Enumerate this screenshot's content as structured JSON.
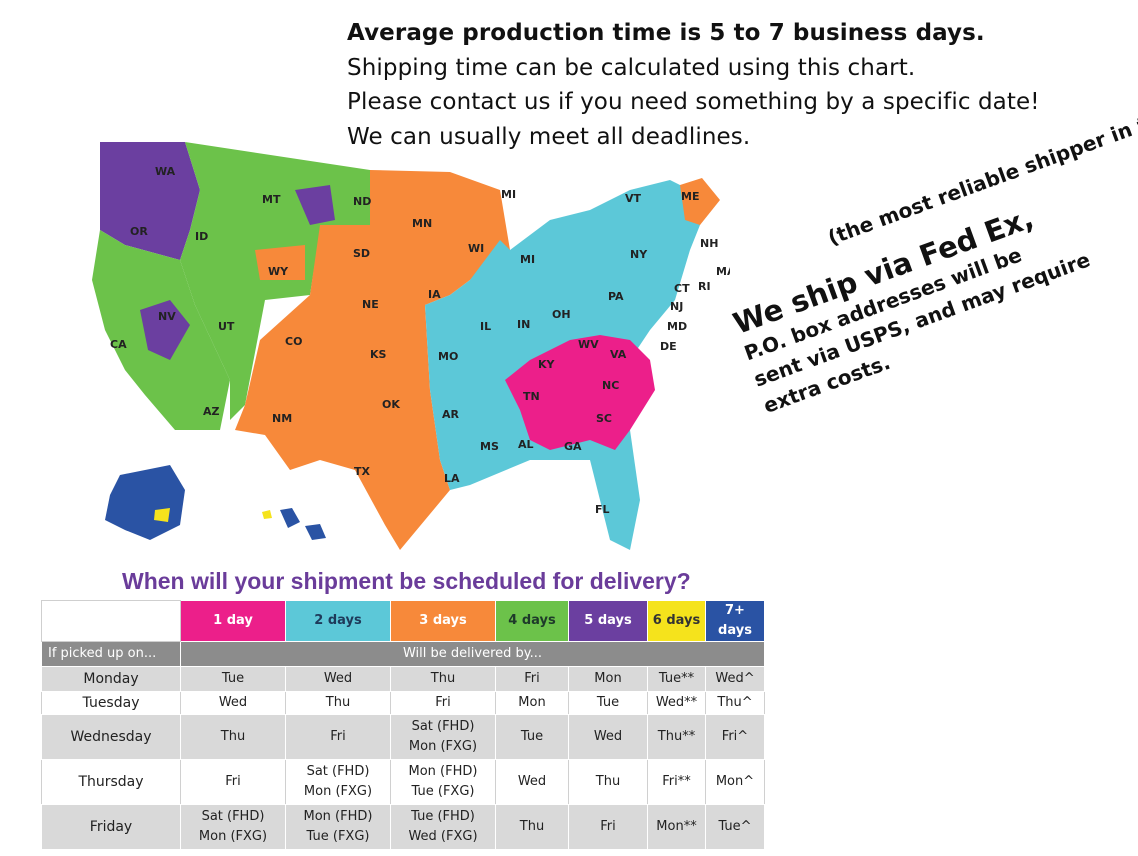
{
  "intro": {
    "line1": "Average production time is 5 to 7 business days.",
    "line2": "Shipping time can be calculated using this chart.",
    "line3": "Please contact us if you need something by a specific date!",
    "line4": "We can usually meet all deadlines."
  },
  "fedex": {
    "heading": "We ship via Fed Ex,",
    "paren": "(the most reliable shipper in the USA.)",
    "line1": "P.O. box addresses will be",
    "line2": "sent via USPS, and may require",
    "line3": "extra costs."
  },
  "map": {
    "states": [
      "WA",
      "OR",
      "CA",
      "ID",
      "NV",
      "MT",
      "WY",
      "UT",
      "AZ",
      "CO",
      "NM",
      "ND",
      "SD",
      "NE",
      "KS",
      "OK",
      "TX",
      "MN",
      "IA",
      "MO",
      "AR",
      "LA",
      "WI",
      "IL",
      "MI",
      "MI",
      "IN",
      "OH",
      "KY",
      "TN",
      "MS",
      "AL",
      "GA",
      "FL",
      "SC",
      "NC",
      "VA",
      "WV",
      "PA",
      "NY",
      "VT",
      "ME",
      "NH",
      "MA",
      "CT",
      "RI",
      "NJ",
      "MD",
      "DE",
      "AK",
      "HI"
    ],
    "zone_colors": {
      "1 day": "#ec1f8a",
      "2 days": "#5cc8d8",
      "3 days": "#f7893a",
      "4 days": "#6cc24a",
      "5 days": "#6b3fa0",
      "6 days": "#f5e31c",
      "7+ days": "#2a53a4"
    }
  },
  "schedule": {
    "title": "When will your shipment be scheduled for delivery?",
    "headers": [
      "1 day",
      "2 days",
      "3 days",
      "4 days",
      "5 days",
      "6 days",
      "7+ days"
    ],
    "header_colors": [
      "#ec1f8a",
      "#5cc8d8",
      "#f7893a",
      "#6cc24a",
      "#6b3fa0",
      "#f5e31c",
      "#2a53a4"
    ],
    "picked_label": "If picked up on...",
    "delivered_label": "Will be delivered by...",
    "rows": [
      {
        "day": "Monday",
        "cells": [
          "Tue",
          "Wed",
          "Thu",
          "Fri",
          "Mon",
          "Tue**",
          "Wed^"
        ]
      },
      {
        "day": "Tuesday",
        "cells": [
          "Wed",
          "Thu",
          "Fri",
          "Mon",
          "Tue",
          "Wed**",
          "Thu^"
        ]
      },
      {
        "day": "Wednesday",
        "cells": [
          "Thu",
          "Fri",
          "Sat (FHD)\nMon (FXG)",
          "Tue",
          "Wed",
          "Thu**",
          "Fri^"
        ]
      },
      {
        "day": "Thursday",
        "cells": [
          "Fri",
          "Sat (FHD)\nMon (FXG)",
          "Mon (FHD)\nTue (FXG)",
          "Wed",
          "Thu",
          "Fri**",
          "Mon^"
        ]
      },
      {
        "day": "Friday",
        "cells": [
          "Sat (FHD)\nMon (FXG)",
          "Mon (FHD)\nTue (FXG)",
          "Tue (FHD)\nWed (FXG)",
          "Thu",
          "Fri",
          "Mon**",
          "Tue^"
        ]
      }
    ]
  }
}
